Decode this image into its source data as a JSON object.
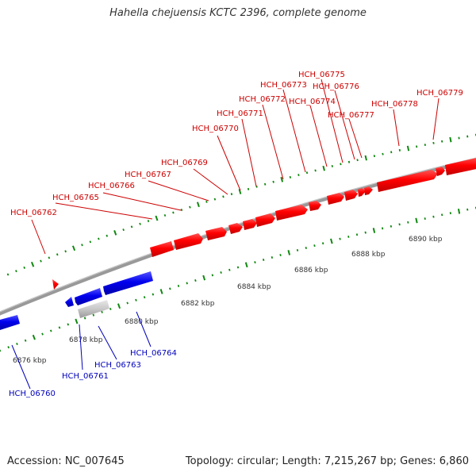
{
  "title": "Hahella chejuensis KCTC 2396, complete genome",
  "footer": {
    "accession": "Accession: NC_007645",
    "stats": "Topology: circular; Length: 7,215,267 bp; Genes: 6,860"
  },
  "colors": {
    "forward_gene": "#ff0000",
    "reverse_gene": "#0000ee",
    "other_gene": "#c8c8c8",
    "tick": "#118811",
    "backbone": "#888888",
    "forward_label": "#cc0000",
    "reverse_label": "#0000bb"
  },
  "scale_labels": [
    "6876 kbp",
    "6878 kbp",
    "6880 kbp",
    "6882 kbp",
    "6884 kbp",
    "6886 kbp",
    "6888 kbp",
    "6890 kbp"
  ],
  "forward_genes": [
    "HCH_06762",
    "HCH_06765",
    "HCH_06766",
    "HCH_06767",
    "HCH_06769",
    "HCH_06770",
    "HCH_06771",
    "HCH_06772",
    "HCH_06773",
    "HCH_06774",
    "HCH_06775",
    "HCH_06776",
    "HCH_06777",
    "HCH_06778",
    "HCH_06779"
  ],
  "reverse_genes": [
    "HCH_06760",
    "HCH_06761",
    "HCH_06763",
    "HCH_06764"
  ]
}
